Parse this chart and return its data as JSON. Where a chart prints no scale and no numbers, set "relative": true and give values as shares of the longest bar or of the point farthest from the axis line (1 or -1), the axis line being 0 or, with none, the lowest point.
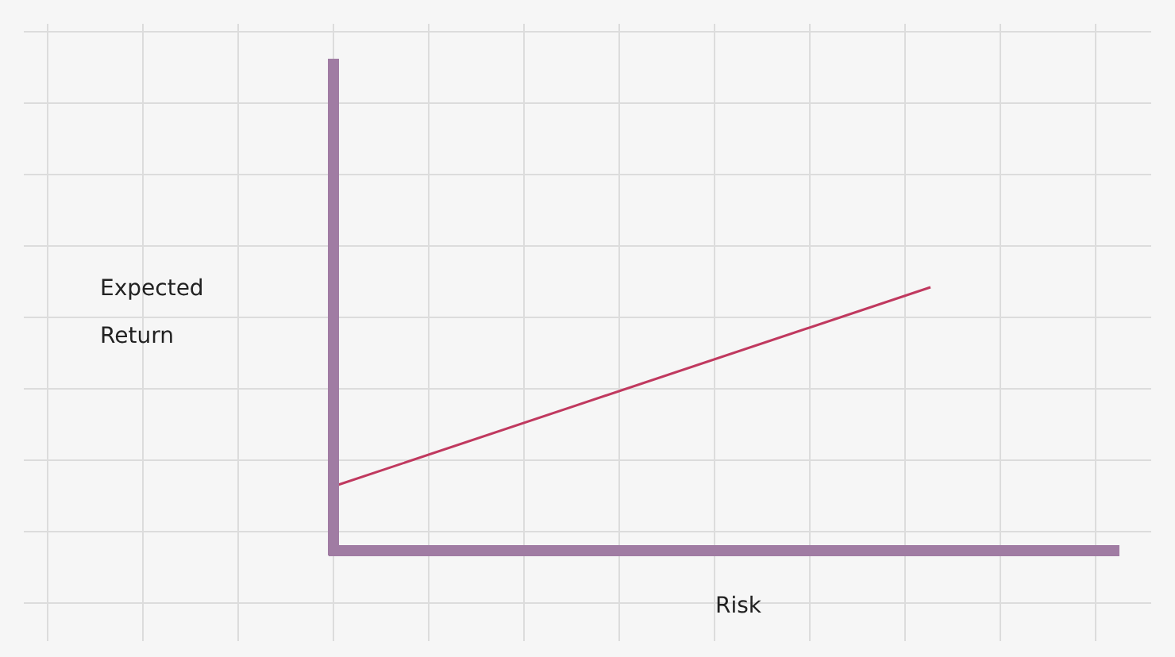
{
  "chart_data": {
    "type": "line",
    "relative": true,
    "xlabel": "Risk",
    "ylabel": "Expected Return",
    "grid": true,
    "categories": [
      null,
      null
    ],
    "series": [
      {
        "color": "#c0395f",
        "values": [
          0.25,
          1
        ]
      }
    ]
  }
}
